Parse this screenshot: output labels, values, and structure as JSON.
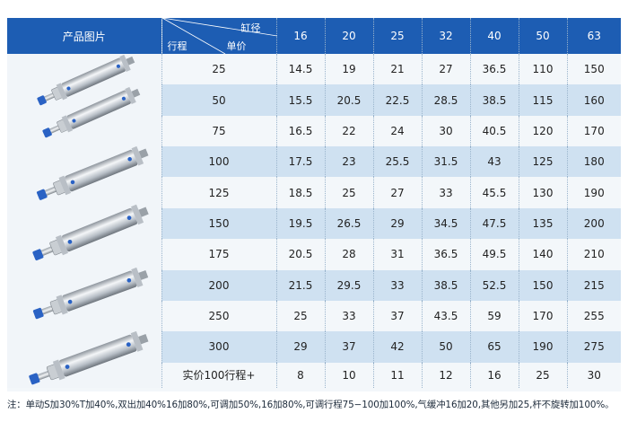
{
  "header": {
    "product_image_label": "产品图片",
    "bore_label": "缸径",
    "stroke_label": "行程",
    "unit_label": "单价",
    "bores": [
      "16",
      "20",
      "25",
      "32",
      "40",
      "50",
      "63"
    ]
  },
  "rows": [
    {
      "stroke": "25",
      "prices": [
        "14.5",
        "19",
        "21",
        "27",
        "36.5",
        "110",
        "150"
      ]
    },
    {
      "stroke": "50",
      "prices": [
        "15.5",
        "20.5",
        "22.5",
        "28.5",
        "38.5",
        "115",
        "160"
      ]
    },
    {
      "stroke": "75",
      "prices": [
        "16.5",
        "22",
        "24",
        "30",
        "40.5",
        "120",
        "170"
      ]
    },
    {
      "stroke": "100",
      "prices": [
        "17.5",
        "23",
        "25.5",
        "31.5",
        "43",
        "125",
        "180"
      ]
    },
    {
      "stroke": "125",
      "prices": [
        "18.5",
        "25",
        "27",
        "33",
        "45.5",
        "130",
        "190"
      ]
    },
    {
      "stroke": "150",
      "prices": [
        "19.5",
        "26.5",
        "29",
        "34.5",
        "47.5",
        "135",
        "200"
      ]
    },
    {
      "stroke": "175",
      "prices": [
        "20.5",
        "28",
        "31",
        "36.5",
        "49.5",
        "140",
        "210"
      ]
    },
    {
      "stroke": "200",
      "prices": [
        "21.5",
        "29.5",
        "33",
        "38.5",
        "52.5",
        "150",
        "215"
      ]
    },
    {
      "stroke": "250",
      "prices": [
        "25",
        "33",
        "37",
        "43.5",
        "59",
        "170",
        "255"
      ]
    },
    {
      "stroke": "300",
      "prices": [
        "29",
        "37",
        "42",
        "50",
        "65",
        "190",
        "275"
      ]
    }
  ],
  "price_row": {
    "label": "实价100行程+",
    "prices": [
      "8",
      "10",
      "11",
      "12",
      "16",
      "25",
      "30"
    ]
  },
  "footnote": "注：单动S加30%T加40%,双出加40%16加80%,可调加50%,16加80%,可调行程75−100加100%,气缓冲16加20,其他另加25,杆不旋转加100%。",
  "colors": {
    "header_bg": "#1d5db3",
    "alt_row_bg": "#cfe1f1",
    "cap_blue": "#2a62c4"
  }
}
